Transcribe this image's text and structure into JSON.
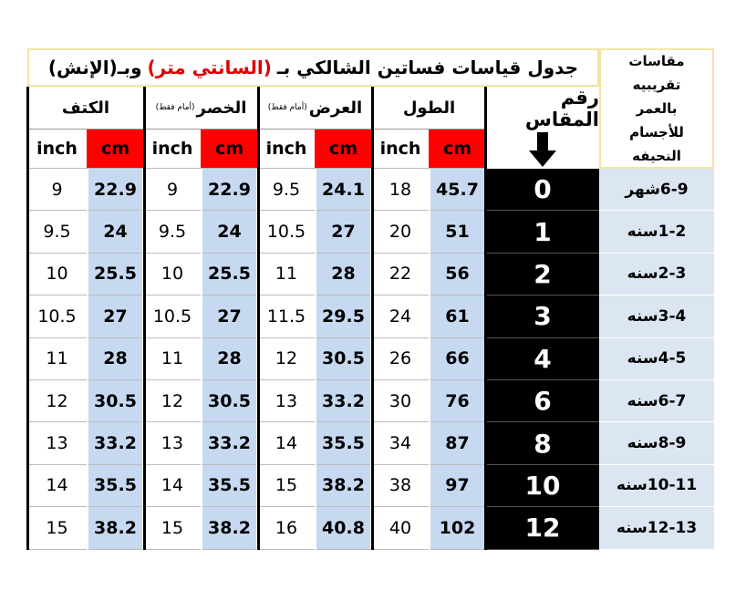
{
  "header": {
    "title_start": "جدول قياسات فساتين الشالكي بـ",
    "title_highlight": "(السانتي متر)",
    "title_end": "وبـ(الإنش)"
  },
  "age_header": "مقاسات تقريبيه بالعمر للأجسام النحيفه",
  "size_header": "رقم المقاس",
  "groups": [
    {
      "name": "الكتف"
    },
    {
      "name": "الخصر",
      "note": "(أمام فقط)"
    },
    {
      "name": "العرض",
      "note": "(أمام فقط)"
    },
    {
      "name": "الطول"
    }
  ],
  "units": [
    "inch",
    "cm"
  ],
  "table": {
    "rows": [
      [
        9,
        22.9,
        9,
        22.9,
        9.5,
        24.1,
        18,
        45.7,
        0,
        "6-9شهر"
      ],
      [
        9.5,
        24,
        9.5,
        24,
        10.5,
        27,
        20,
        51,
        1,
        "1-2سنه"
      ],
      [
        10,
        25.5,
        10,
        25.5,
        11,
        28,
        22,
        56,
        2,
        "2-3سنه"
      ],
      [
        10.5,
        27,
        10.5,
        27,
        11.5,
        29.5,
        24,
        61,
        3,
        "3-4سنه"
      ],
      [
        11,
        28,
        11,
        28,
        12,
        30.5,
        26,
        66,
        4,
        "4-5سنه"
      ],
      [
        12,
        30.5,
        12,
        30.5,
        13,
        33.2,
        30,
        76,
        6,
        "6-7سنه"
      ],
      [
        13,
        33.2,
        13,
        33.2,
        14,
        35.5,
        34,
        87,
        8,
        "8-9سنه"
      ],
      [
        14,
        35.5,
        14,
        35.5,
        15,
        38.2,
        38,
        97,
        10,
        "10-11سنه"
      ],
      [
        15,
        38.2,
        15,
        38.2,
        16,
        40.8,
        40,
        102,
        12,
        "12-13سنه"
      ]
    ]
  }
}
